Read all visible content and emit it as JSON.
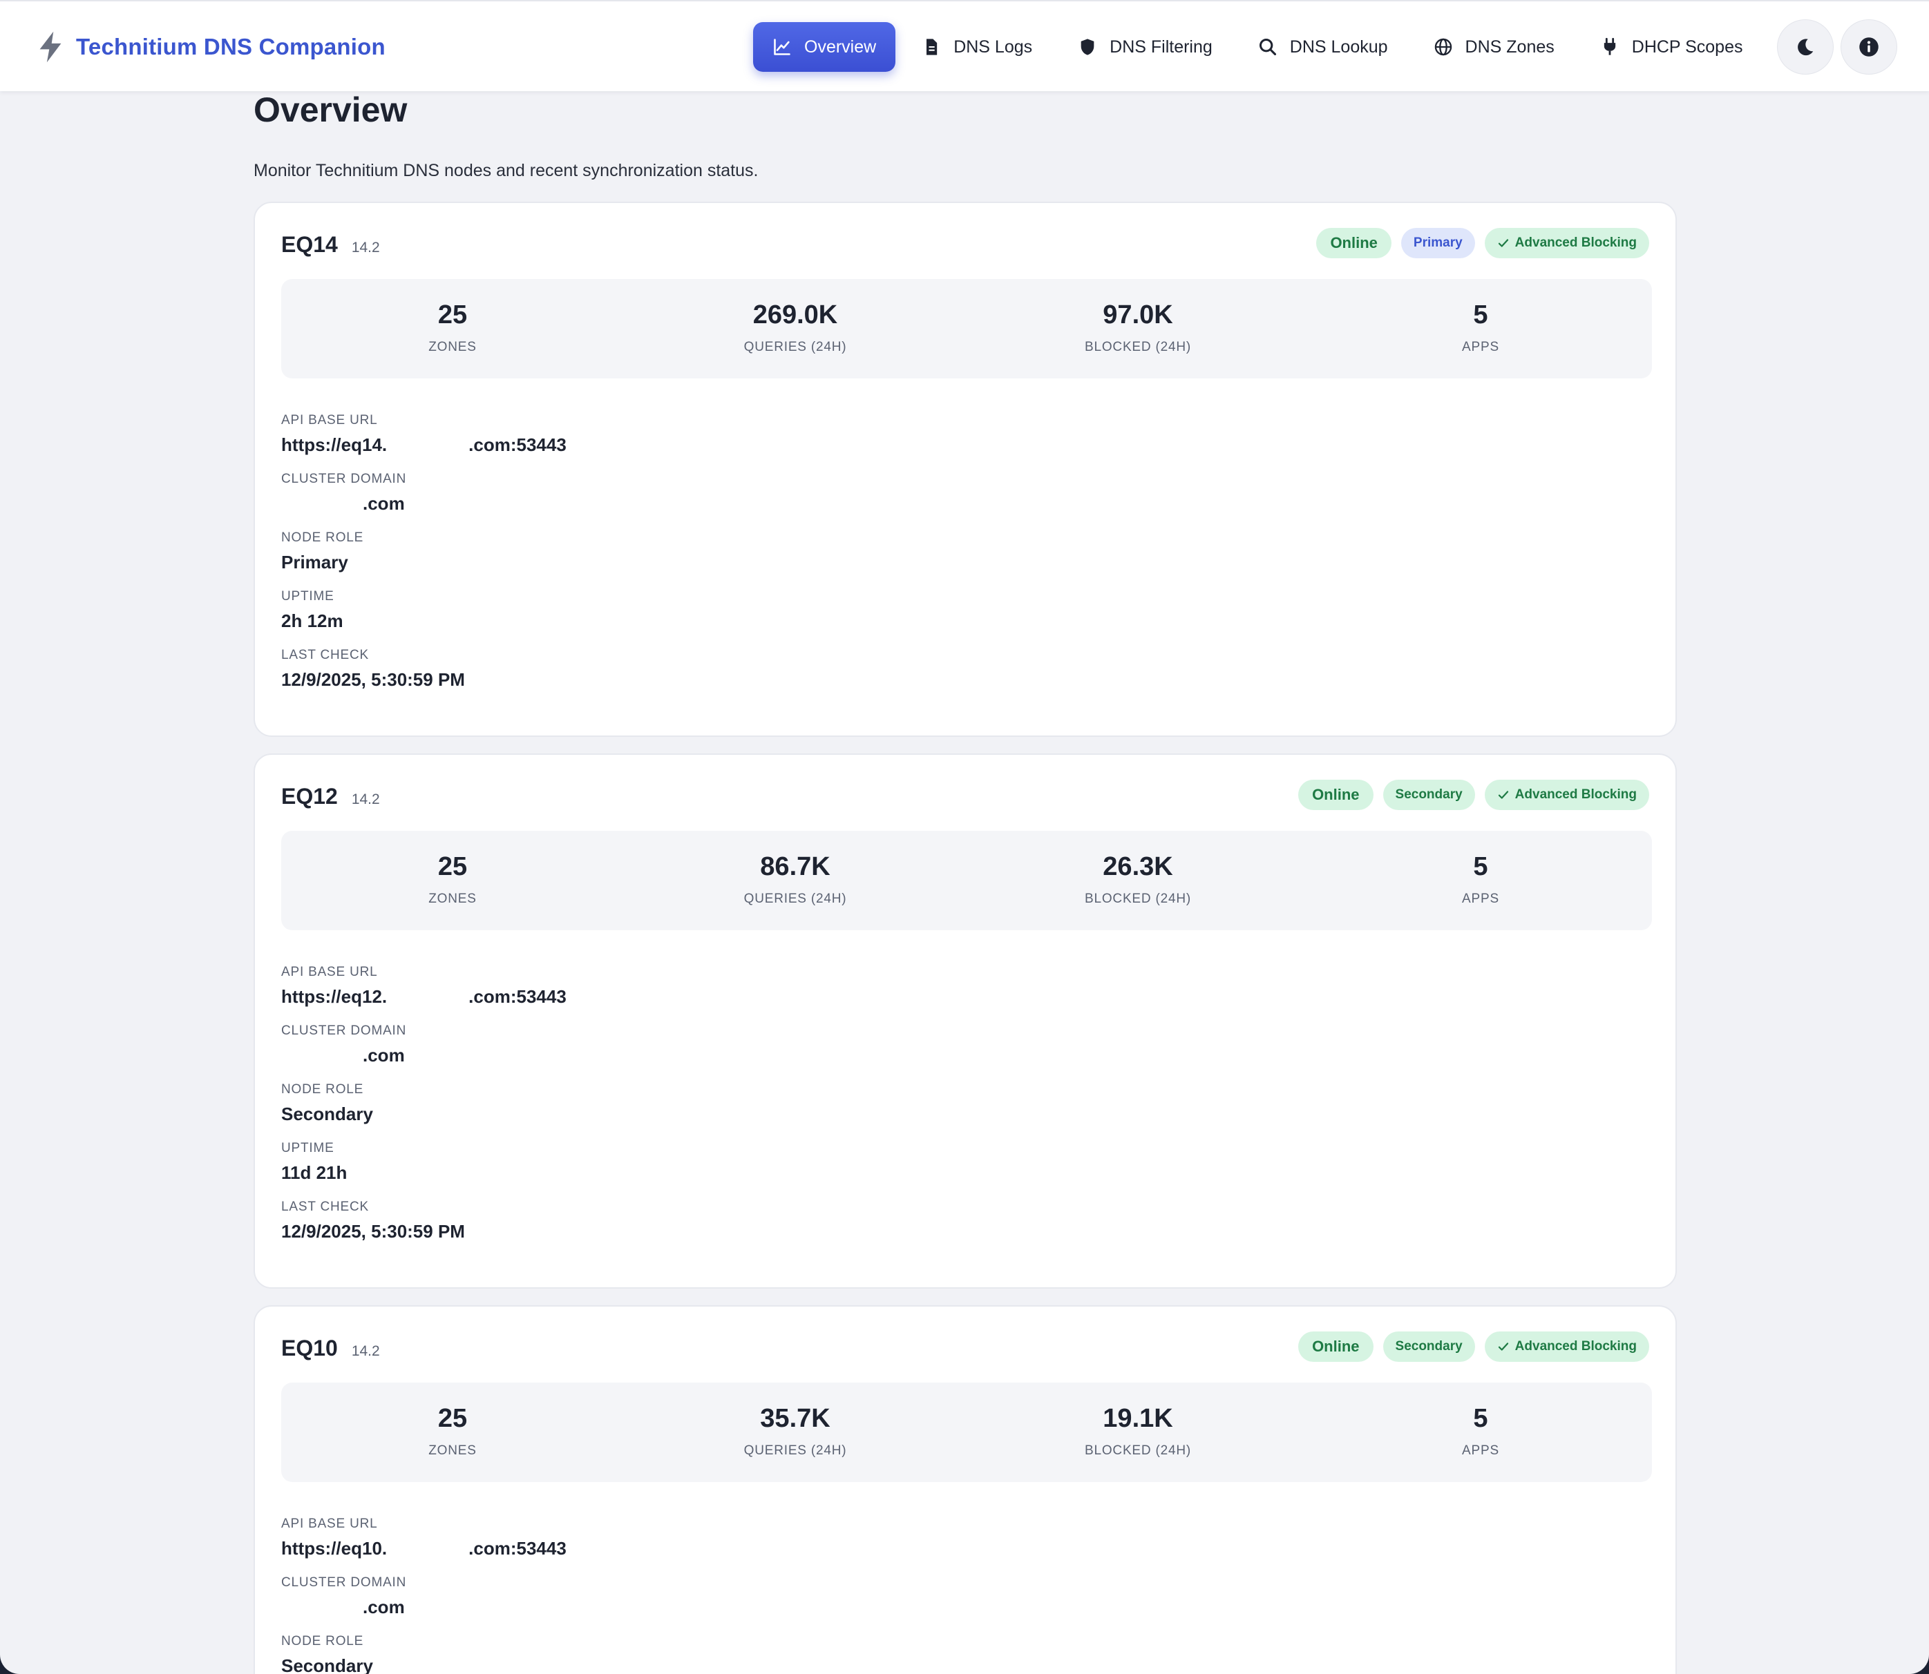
{
  "app": {
    "title": "Technitium DNS Companion"
  },
  "nav": {
    "items": [
      {
        "label": "Overview",
        "icon": "chart-line-icon",
        "active": true
      },
      {
        "label": "DNS Logs",
        "icon": "document-icon",
        "active": false
      },
      {
        "label": "DNS Filtering",
        "icon": "shield-icon",
        "active": false
      },
      {
        "label": "DNS Lookup",
        "icon": "search-icon",
        "active": false
      },
      {
        "label": "DNS Zones",
        "icon": "globe-icon",
        "active": false
      },
      {
        "label": "DHCP Scopes",
        "icon": "plug-icon",
        "active": false
      }
    ],
    "actions": [
      {
        "icon": "moon-icon"
      },
      {
        "icon": "info-icon"
      }
    ]
  },
  "page": {
    "title": "Overview",
    "subtitle": "Monitor Technitium DNS nodes and recent synchronization status."
  },
  "labels": {
    "zones": "ZONES",
    "queries": "QUERIES (24H)",
    "blocked": "BLOCKED (24H)",
    "apps": "APPS",
    "api_base_url": "API BASE URL",
    "cluster_domain": "CLUSTER DOMAIN",
    "node_role": "NODE ROLE",
    "uptime": "UPTIME",
    "last_check": "LAST CHECK"
  },
  "nodes": [
    {
      "name": "EQ14",
      "version": "14.2",
      "status": "Online",
      "role_badge": "Primary",
      "blocking_badge": "Advanced Blocking",
      "zones": "25",
      "queries": "269.0K",
      "blocked": "97.0K",
      "apps": "5",
      "api_prefix": "https://eq14.",
      "api_suffix": ".com:53443",
      "cluster_suffix": ".com",
      "role": "Primary",
      "uptime": "2h 12m",
      "last_check": "12/9/2025, 5:30:59 PM"
    },
    {
      "name": "EQ12",
      "version": "14.2",
      "status": "Online",
      "role_badge": "Secondary",
      "blocking_badge": "Advanced Blocking",
      "zones": "25",
      "queries": "86.7K",
      "blocked": "26.3K",
      "apps": "5",
      "api_prefix": "https://eq12.",
      "api_suffix": ".com:53443",
      "cluster_suffix": ".com",
      "role": "Secondary",
      "uptime": "11d 21h",
      "last_check": "12/9/2025, 5:30:59 PM"
    },
    {
      "name": "EQ10",
      "version": "14.2",
      "status": "Online",
      "role_badge": "Secondary",
      "blocking_badge": "Advanced Blocking",
      "zones": "25",
      "queries": "35.7K",
      "blocked": "19.1K",
      "apps": "5",
      "api_prefix": "https://eq10.",
      "api_suffix": ".com:53443",
      "cluster_suffix": ".com",
      "role": "Secondary"
    }
  ],
  "colors": {
    "accent": "#3b56cf",
    "online_bg": "#d6f4e2",
    "online_text": "#1e7a44",
    "primary_bg": "#dfe6fb",
    "page_bg": "#f1f2f6"
  }
}
